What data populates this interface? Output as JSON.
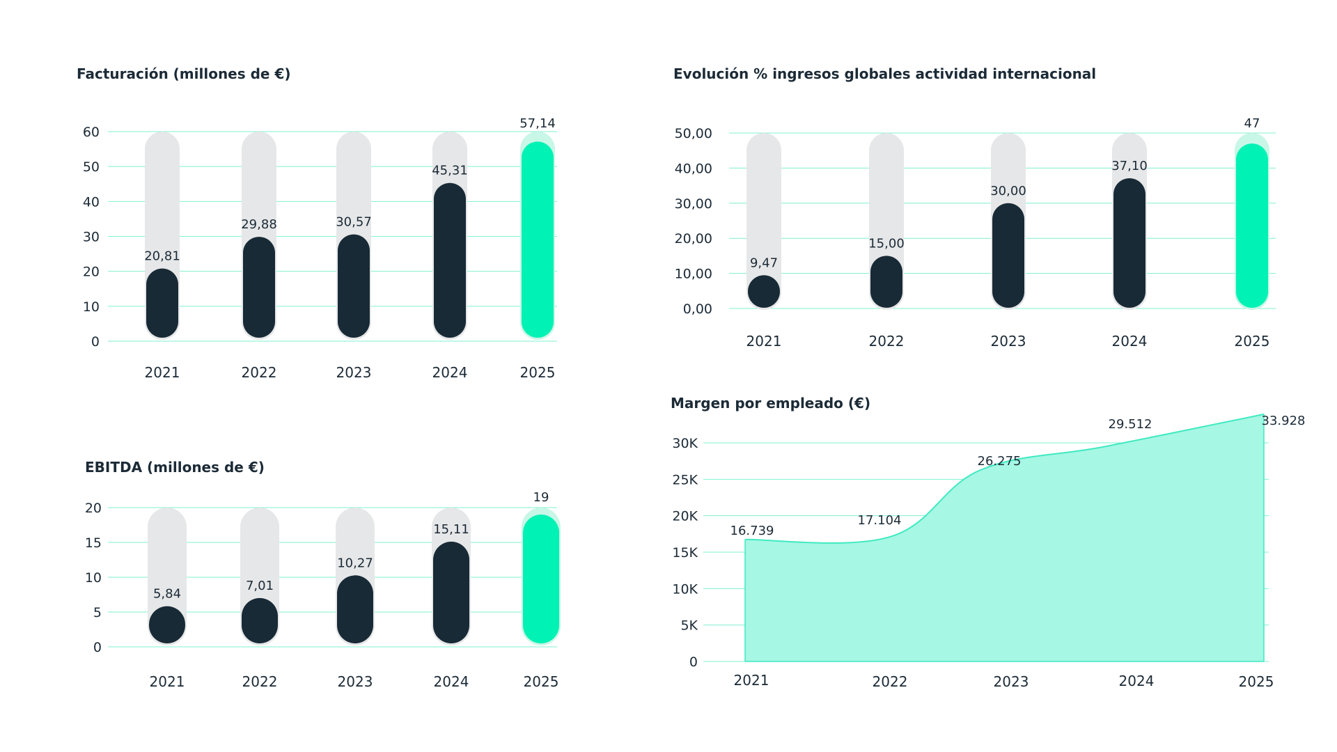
{
  "colors": {
    "dark": "#182a36",
    "accent": "#00f2b4",
    "accent_halo": "#c8f6e7",
    "track": "#e6e7e8",
    "grid": "#7ff0cf",
    "area": "#a6f7e4",
    "area_stroke": "#3feac0",
    "text": "#1b2a36"
  },
  "chart_data": [
    {
      "type": "bar",
      "title": "Facturación (millones de €)",
      "categories": [
        "2021",
        "2022",
        "2023",
        "2024",
        "2025"
      ],
      "values": [
        20.81,
        29.88,
        30.57,
        45.31,
        57.14
      ],
      "value_labels": [
        "20,81",
        "29,88",
        "30,57",
        "45,31",
        "57,14"
      ],
      "yticks": [
        "0",
        "10",
        "20",
        "30",
        "40",
        "50",
        "60"
      ],
      "ylim": [
        0,
        60
      ],
      "highlight_last": true,
      "grid": true
    },
    {
      "type": "bar",
      "title": "Evolución % ingresos globales actividad internacional",
      "categories": [
        "2021",
        "2022",
        "2023",
        "2024",
        "2025"
      ],
      "values": [
        9.47,
        15.0,
        30.0,
        37.1,
        47
      ],
      "value_labels": [
        "9,47",
        "15,00",
        "30,00",
        "37,10",
        "47"
      ],
      "yticks": [
        "0,00",
        "10,00",
        "20,00",
        "30,00",
        "40,00",
        "50,00"
      ],
      "ylim": [
        0,
        50
      ],
      "highlight_last": true,
      "grid": true
    },
    {
      "type": "bar",
      "title": "EBITDA (millones de €)",
      "categories": [
        "2021",
        "2022",
        "2023",
        "2024",
        "2025"
      ],
      "values": [
        5.84,
        7.01,
        10.27,
        15.11,
        19
      ],
      "value_labels": [
        "5,84",
        "7,01",
        "10,27",
        "15,11",
        "19"
      ],
      "yticks": [
        "0",
        "5",
        "10",
        "15",
        "20"
      ],
      "ylim": [
        0,
        20
      ],
      "highlight_last": true,
      "grid": true
    },
    {
      "type": "area",
      "title": "Margen por empleado (€)",
      "categories": [
        "2021",
        "2022",
        "2023",
        "2024",
        "2025"
      ],
      "values": [
        16739,
        17104,
        26275,
        29512,
        33928
      ],
      "value_labels": [
        "16.739",
        "17.104",
        "26.275",
        "29.512",
        "33.928"
      ],
      "yticks": [
        "0",
        "5K",
        "10K",
        "15K",
        "20K",
        "25K",
        "30K"
      ],
      "ylim": [
        0,
        30000
      ],
      "grid": true
    }
  ]
}
